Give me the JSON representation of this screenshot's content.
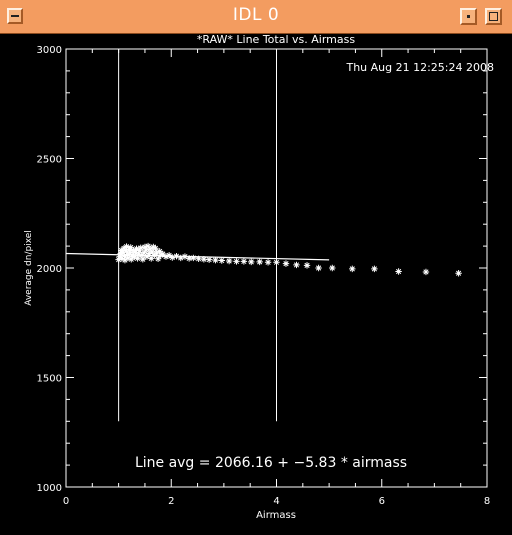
{
  "window": {
    "title": "IDL 0"
  },
  "plot": {
    "title": "*RAW* Line Total vs. Airmass",
    "timestamp": "Thu Aug 21 12:25:24 2008",
    "annotation": "Line avg = 2066.16 + −5.83 * airmass"
  },
  "chart_data": {
    "type": "scatter",
    "title": "*RAW* Line Total vs. Airmass",
    "xlabel": "Airmass",
    "ylabel": "Average dn/pixel",
    "xlim": [
      0,
      8
    ],
    "ylim": [
      1000,
      3000
    ],
    "x_ticks": [
      "0",
      "2",
      "4",
      "6",
      "8"
    ],
    "y_ticks": [
      "1000",
      "1500",
      "2000",
      "2500",
      "3000"
    ],
    "grid": false,
    "marker": "asterisk",
    "colors": {
      "background": "#000000",
      "foreground": "#ffffff",
      "titlebar": "#f39c60"
    },
    "points": [
      [
        1.0,
        2038
      ],
      [
        1.02,
        2052
      ],
      [
        1.04,
        2066
      ],
      [
        1.05,
        2080
      ],
      [
        1.06,
        2044
      ],
      [
        1.08,
        2072
      ],
      [
        1.1,
        2090
      ],
      [
        1.11,
        2056
      ],
      [
        1.12,
        2036
      ],
      [
        1.14,
        2078
      ],
      [
        1.15,
        2098
      ],
      [
        1.17,
        2062
      ],
      [
        1.18,
        2046
      ],
      [
        1.2,
        2084
      ],
      [
        1.21,
        2070
      ],
      [
        1.23,
        2094
      ],
      [
        1.24,
        2040
      ],
      [
        1.26,
        2060
      ],
      [
        1.28,
        2080
      ],
      [
        1.3,
        2050
      ],
      [
        1.32,
        2072
      ],
      [
        1.34,
        2088
      ],
      [
        1.36,
        2044
      ],
      [
        1.38,
        2064
      ],
      [
        1.4,
        2078
      ],
      [
        1.42,
        2092
      ],
      [
        1.44,
        2058
      ],
      [
        1.46,
        2040
      ],
      [
        1.48,
        2070
      ],
      [
        1.5,
        2096
      ],
      [
        1.52,
        2082
      ],
      [
        1.54,
        2052
      ],
      [
        1.56,
        2100
      ],
      [
        1.58,
        2066
      ],
      [
        1.6,
        2086
      ],
      [
        1.62,
        2044
      ],
      [
        1.64,
        2074
      ],
      [
        1.66,
        2096
      ],
      [
        1.68,
        2058
      ],
      [
        1.7,
        2090
      ],
      [
        1.72,
        2068
      ],
      [
        1.75,
        2042
      ],
      [
        1.78,
        2076
      ],
      [
        1.8,
        2058
      ],
      [
        1.84,
        2064
      ],
      [
        1.9,
        2052
      ],
      [
        1.96,
        2058
      ],
      [
        2.02,
        2048
      ],
      [
        2.1,
        2054
      ],
      [
        2.18,
        2046
      ],
      [
        2.26,
        2052
      ],
      [
        2.34,
        2044
      ],
      [
        2.42,
        2046
      ],
      [
        2.52,
        2042
      ],
      [
        2.62,
        2040
      ],
      [
        2.72,
        2038
      ],
      [
        2.84,
        2036
      ],
      [
        2.96,
        2034
      ],
      [
        3.1,
        2032
      ],
      [
        3.24,
        2030
      ],
      [
        3.38,
        2030
      ],
      [
        3.52,
        2028
      ],
      [
        3.68,
        2028
      ],
      [
        3.84,
        2026
      ],
      [
        4.0,
        2026
      ],
      [
        4.18,
        2020
      ],
      [
        4.38,
        2014
      ],
      [
        4.58,
        2012
      ],
      [
        4.8,
        2000
      ],
      [
        5.06,
        2000
      ],
      [
        5.44,
        1996
      ],
      [
        5.86,
        1996
      ],
      [
        6.32,
        1984
      ],
      [
        6.84,
        1982
      ],
      [
        7.46,
        1976
      ]
    ],
    "fit_line": {
      "x": [
        0,
        5
      ],
      "y": [
        2066.16,
        2037.01
      ]
    },
    "vertical_markers": [
      1,
      4
    ]
  }
}
